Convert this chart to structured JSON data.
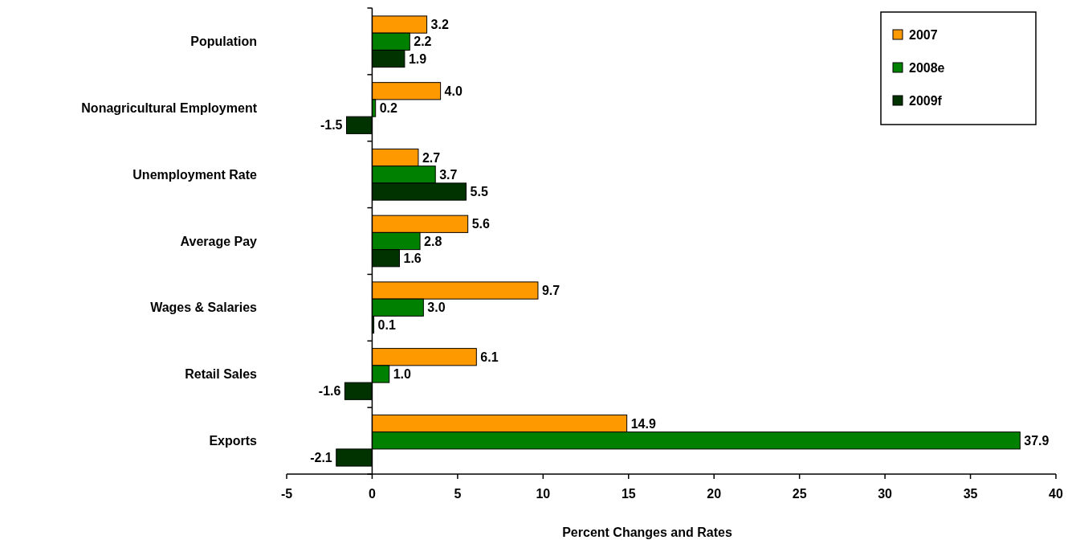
{
  "chart_data": {
    "type": "bar",
    "orientation": "horizontal",
    "xlabel": "Percent Changes and Rates",
    "categories": [
      "Population",
      "Nonagricultural Employment",
      "Unemployment Rate",
      "Average Pay",
      "Wages & Salaries",
      "Retail Sales",
      "Exports"
    ],
    "series": [
      {
        "name": "2007",
        "color": "#ff9900",
        "values": [
          3.2,
          4.0,
          2.7,
          5.6,
          9.7,
          6.1,
          14.9
        ],
        "value_labels": [
          "3.2",
          "4.0",
          "2.7",
          "5.6",
          "9.7",
          "6.1",
          "14.9"
        ]
      },
      {
        "name": "2008e",
        "color": "#008000",
        "values": [
          2.2,
          0.2,
          3.7,
          2.8,
          3.0,
          1.0,
          37.9
        ],
        "value_labels": [
          "2.2",
          "0.2",
          "3.7",
          "2.8",
          "3.0",
          "1.0",
          "37.9"
        ]
      },
      {
        "name": "2009f",
        "color": "#003300",
        "values": [
          1.9,
          -1.5,
          5.5,
          1.6,
          0.1,
          -1.6,
          -2.1
        ],
        "value_labels": [
          "1.9",
          "-1.5",
          "5.5",
          "1.6",
          "0.1",
          "-1.6",
          "-2.1"
        ]
      }
    ],
    "xlim": [
      -5,
      40
    ],
    "xticks": [
      -5,
      0,
      5,
      10,
      15,
      20,
      25,
      30,
      35,
      40
    ],
    "legend": "top right"
  }
}
